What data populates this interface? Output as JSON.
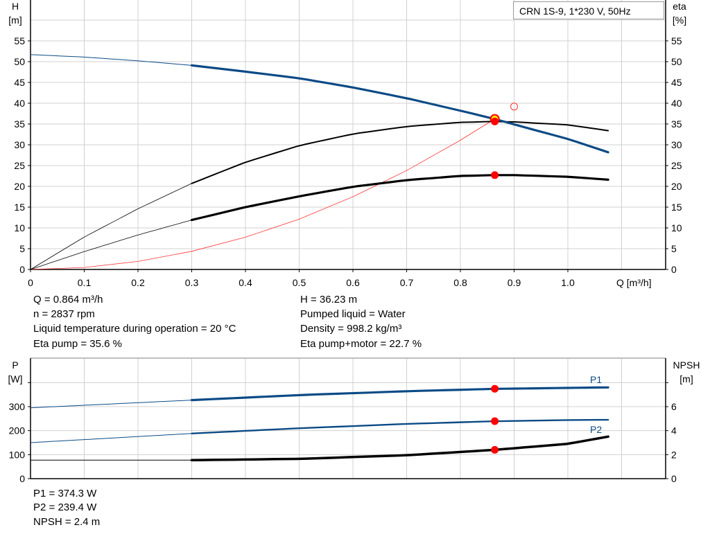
{
  "legend_title": "CRN 1S-9, 1*230 V, 50Hz",
  "colors": {
    "head": "#0a4a85",
    "eta": "#000000",
    "system": "#ff3030",
    "point": "#ff0000",
    "grid": "#d0d0d0"
  },
  "chart_data": [
    {
      "type": "line",
      "ylabel": "H",
      "yunit": "[m]",
      "y2label": "eta",
      "y2unit": "[%]",
      "xlabel": "Q [m³/h]",
      "xlim": [
        0,
        1.15
      ],
      "ylim": [
        0,
        60
      ],
      "grid": true,
      "xticks": [
        "0",
        "0.1",
        "0.2",
        "0.3",
        "0.4",
        "0.5",
        "0.6",
        "0.7",
        "0.8",
        "0.9",
        "1.0"
      ],
      "yticks": [
        "0",
        "5",
        "10",
        "15",
        "20",
        "25",
        "30",
        "35",
        "40",
        "45",
        "50",
        "55"
      ],
      "series": [
        {
          "key": "H",
          "x": [
            0,
            0.1,
            0.2,
            0.3,
            0.4,
            0.5,
            0.6,
            0.7,
            0.8,
            0.864,
            0.9,
            1.0,
            1.075
          ],
          "y": [
            51.7,
            51.1,
            50.2,
            49.1,
            47.6,
            46.0,
            43.8,
            41.2,
            38.2,
            36.2,
            34.9,
            31.4,
            28.2
          ]
        },
        {
          "key": "eta_pump",
          "x": [
            0,
            0.1,
            0.2,
            0.3,
            0.4,
            0.5,
            0.6,
            0.7,
            0.8,
            0.864,
            0.9,
            1.0,
            1.075
          ],
          "y": [
            0,
            7.8,
            14.6,
            20.7,
            25.8,
            29.8,
            32.6,
            34.4,
            35.4,
            35.6,
            35.5,
            34.8,
            33.4
          ]
        },
        {
          "key": "eta_pump_motor",
          "x": [
            0,
            0.1,
            0.2,
            0.3,
            0.4,
            0.5,
            0.6,
            0.7,
            0.8,
            0.864,
            0.9,
            1.0,
            1.075
          ],
          "y": [
            0,
            4.3,
            8.3,
            11.9,
            15.0,
            17.6,
            19.9,
            21.5,
            22.5,
            22.7,
            22.7,
            22.3,
            21.6
          ]
        },
        {
          "key": "system",
          "x": [
            0,
            0.1,
            0.2,
            0.3,
            0.4,
            0.5,
            0.6,
            0.7,
            0.8,
            0.864
          ],
          "y": [
            0,
            0.49,
            1.94,
            4.37,
            7.76,
            12.1,
            17.5,
            23.8,
            31.1,
            36.23
          ]
        }
      ],
      "points": [
        {
          "x": 0.864,
          "y": 36.23
        },
        {
          "x": 0.864,
          "y": 35.6
        },
        {
          "x": 0.864,
          "y": 22.7
        }
      ],
      "open_point": {
        "x": 0.9,
        "y": 39.2
      },
      "duty_start_x": 0.3
    },
    {
      "type": "line",
      "ylabel": "P",
      "yunit": "[W]",
      "y2label": "NPSH",
      "y2unit": "[m]",
      "xlim": [
        0,
        1.15
      ],
      "ylim": [
        0,
        420
      ],
      "y2lim": [
        0,
        8.4
      ],
      "grid": true,
      "yticks": [
        "0",
        "100",
        "200",
        "300"
      ],
      "y2ticks": [
        "0",
        "2",
        "4",
        "6"
      ],
      "series": [
        {
          "key": "P1",
          "name": "P1",
          "x": [
            0,
            0.3,
            0.5,
            0.7,
            0.864,
            1.0,
            1.075
          ],
          "y": [
            295,
            327,
            348,
            364,
            374,
            378,
            380
          ]
        },
        {
          "key": "P2",
          "name": "P2",
          "x": [
            0,
            0.3,
            0.5,
            0.7,
            0.864,
            1.0,
            1.075
          ],
          "y": [
            150,
            188,
            210,
            228,
            239,
            244,
            245
          ]
        },
        {
          "key": "NPSH",
          "x": [
            0,
            0.3,
            0.5,
            0.7,
            0.864,
            1.0,
            1.075
          ],
          "y": [
            1.54,
            1.54,
            1.65,
            1.95,
            2.4,
            2.9,
            3.5
          ]
        }
      ],
      "points": [
        {
          "key": "P1",
          "x": 0.864,
          "y": 374.3
        },
        {
          "key": "P2",
          "x": 0.864,
          "y": 239.4
        },
        {
          "key": "NPSH",
          "x": 0.864,
          "y": 2.4
        }
      ],
      "duty_start_x": 0.3
    }
  ],
  "info_top": {
    "left": [
      "Q = 0.864 m³/h",
      "n = 2837 rpm",
      "Liquid temperature during operation = 20 °C",
      "Eta pump = 35.6 %"
    ],
    "right": [
      "H = 36.23 m",
      "Pumped liquid = Water",
      "Density = 998.2 kg/m³",
      "Eta pump+motor = 22.7 %"
    ]
  },
  "info_bottom": [
    "P1 = 374.3 W",
    "P2 = 239.4 W",
    "NPSH = 2.4 m"
  ]
}
